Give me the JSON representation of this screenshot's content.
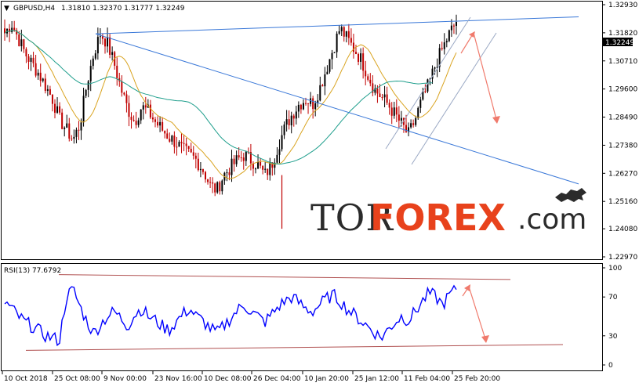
{
  "colors": {
    "background": "#ffffff",
    "bull_candle": "#000000",
    "bear_candle": "#c00000",
    "ma_fast": "#d9a31f",
    "ma_slow": "#1e9e8c",
    "trendline": "#3a78d8",
    "channel": "#9aa8c4",
    "forecast_arrow": "#f07a6c",
    "rsi_line": "#0000ff",
    "rsi_band": "#b05050",
    "price_tag_bg": "#000000",
    "price_tag_text": "#ffffff",
    "watermark_dark": "#2b2b2b",
    "watermark_accent": "#e8421c"
  },
  "header": {
    "indicator_symbol": "▼",
    "symbol": "GBPUSD,H4",
    "ohlc": "1.31810 1.32370 1.31777 1.32249"
  },
  "watermark": {
    "part1": "TOR",
    "part2": "FOREX",
    "part3": ".com",
    "logo_icon": "bull-and-bear-icon"
  },
  "chart_data": [
    {
      "type": "candlestick",
      "title": "GBPUSD,H4",
      "subtitle": "1.31810 1.32370 1.31777 1.32249",
      "current_price": "1.32249",
      "ylim": [
        1.2297,
        1.3293
      ],
      "y_ticks": [
        "1.32930",
        "1.31820",
        "1.30710",
        "1.29600",
        "1.28490",
        "1.27380",
        "1.26270",
        "1.25160",
        "1.24080",
        "1.22970"
      ],
      "x_ticks": [
        "10 Oct 2018",
        "25 Oct 08:00",
        "9 Nov 00:00",
        "23 Nov 16:00",
        "10 Dec 08:00",
        "26 Dec 04:00",
        "10 Jan 20:00",
        "25 Jan 12:00",
        "11 Feb 04:00",
        "25 Feb 20:00"
      ],
      "close_path_approx": [
        1.318,
        1.322,
        1.316,
        1.31,
        1.306,
        1.302,
        1.297,
        1.292,
        1.284,
        1.28,
        1.276,
        1.282,
        1.298,
        1.31,
        1.318,
        1.314,
        1.306,
        1.296,
        1.288,
        1.283,
        1.289,
        1.287,
        1.283,
        1.28,
        1.277,
        1.275,
        1.272,
        1.27,
        1.268,
        1.264,
        1.258,
        1.256,
        1.262,
        1.265,
        1.268,
        1.27,
        1.268,
        1.266,
        1.262,
        1.266,
        1.274,
        1.281,
        1.286,
        1.29,
        1.292,
        1.29,
        1.296,
        1.304,
        1.312,
        1.32,
        1.316,
        1.312,
        1.308,
        1.302,
        1.296,
        1.293,
        1.29,
        1.286,
        1.282,
        1.278,
        1.284,
        1.292,
        1.298,
        1.306,
        1.312,
        1.318,
        1.3225
      ],
      "lows": [
        {
          "x": "26 Dec 04:00",
          "y": 1.2408
        }
      ],
      "highs": [
        {
          "x": "25 Jan 12:00",
          "y": 1.319
        },
        {
          "x": "10 Oct 2018",
          "y": 1.324
        }
      ],
      "indicators": [
        "moving average (fast)",
        "moving average (slow)"
      ]
    },
    {
      "type": "line",
      "title": "RSI(13) 77.6792",
      "ylim": [
        0,
        100
      ],
      "y_ticks": [
        "100",
        "70",
        "30",
        "0"
      ],
      "current_value": 77.6792,
      "values_approx": [
        65,
        58,
        50,
        44,
        40,
        35,
        30,
        28,
        25,
        70,
        78,
        60,
        45,
        32,
        42,
        50,
        55,
        48,
        40,
        52,
        58,
        50,
        46,
        40,
        36,
        44,
        52,
        58,
        50,
        45,
        38,
        33,
        40,
        48,
        56,
        62,
        55,
        50,
        44,
        52,
        60,
        66,
        70,
        64,
        58,
        55,
        62,
        68,
        72,
        66,
        58,
        52,
        46,
        40,
        34,
        28,
        36,
        44,
        50,
        46,
        55,
        65,
        74,
        70,
        62,
        72,
        77.7
      ]
    }
  ]
}
